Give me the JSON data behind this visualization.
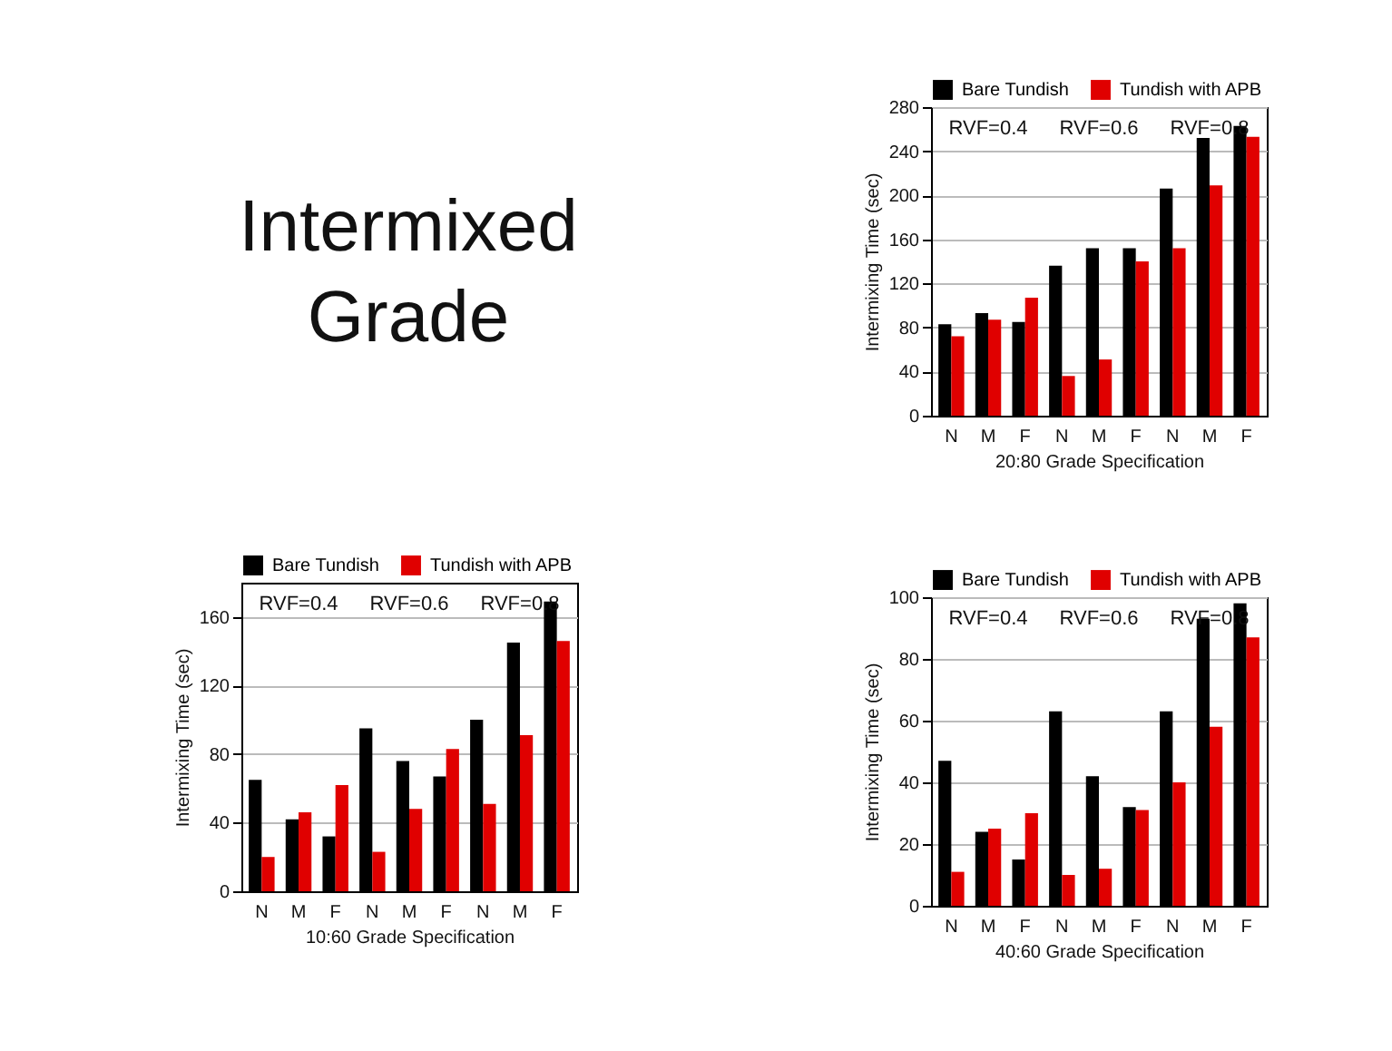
{
  "chart_data": [
    {
      "type": "other",
      "title": "Intermixed Grade"
    },
    {
      "type": "bar",
      "xlabel": "20:80 Grade Specification",
      "ylabel": "Intermixing Time (sec)",
      "categories": [
        "N",
        "M",
        "F",
        "N",
        "M",
        "F",
        "N",
        "M",
        "F"
      ],
      "series": [
        {
          "name": "Bare Tundish",
          "color": "#000000",
          "values": [
            83,
            93,
            85,
            136,
            152,
            152,
            206,
            252,
            263
          ]
        },
        {
          "name": "Tundish with APB",
          "color": "#e00000",
          "values": [
            72,
            87,
            107,
            36,
            51,
            140,
            152,
            209,
            253
          ]
        }
      ],
      "ylim": [
        0,
        280
      ],
      "yticks": [
        0,
        40,
        80,
        120,
        160,
        200,
        240,
        280
      ],
      "grid": "y",
      "legend": "top right",
      "annotations": [
        "RVF=0.4",
        "RVF=0.6",
        "RVF=0.8"
      ]
    },
    {
      "type": "bar",
      "xlabel": "10:60 Grade Specification",
      "ylabel": "Intermixing Time (sec)",
      "categories": [
        "N",
        "M",
        "F",
        "N",
        "M",
        "F",
        "N",
        "M",
        "F"
      ],
      "series": [
        {
          "name": "Bare Tundish",
          "color": "#000000",
          "values": [
            65,
            42,
            32,
            95,
            76,
            67,
            100,
            145,
            169
          ]
        },
        {
          "name": "Tundish with APB",
          "color": "#e00000",
          "values": [
            20,
            46,
            62,
            23,
            48,
            83,
            51,
            91,
            146
          ]
        }
      ],
      "ylim": [
        0,
        180
      ],
      "yticks": [
        0,
        40,
        80,
        120,
        160
      ],
      "grid": "y",
      "legend": "top right",
      "annotations": [
        "RVF=0.4",
        "RVF=0.6",
        "RVF=0.8"
      ]
    },
    {
      "type": "bar",
      "xlabel": "40:60 Grade Specification",
      "ylabel": "Intermixing Time (sec)",
      "categories": [
        "N",
        "M",
        "F",
        "N",
        "M",
        "F",
        "N",
        "M",
        "F"
      ],
      "series": [
        {
          "name": "Bare Tundish",
          "color": "#000000",
          "values": [
            47,
            24,
            15,
            63,
            42,
            32,
            63,
            93,
            98
          ]
        },
        {
          "name": "Tundish with APB",
          "color": "#e00000",
          "values": [
            11,
            25,
            30,
            10,
            12,
            31,
            40,
            58,
            87
          ]
        }
      ],
      "ylim": [
        0,
        100
      ],
      "yticks": [
        0,
        20,
        40,
        60,
        80,
        100
      ],
      "grid": "y",
      "legend": "top right",
      "annotations": [
        "RVF=0.4",
        "RVF=0.6",
        "RVF=0.8"
      ]
    }
  ]
}
